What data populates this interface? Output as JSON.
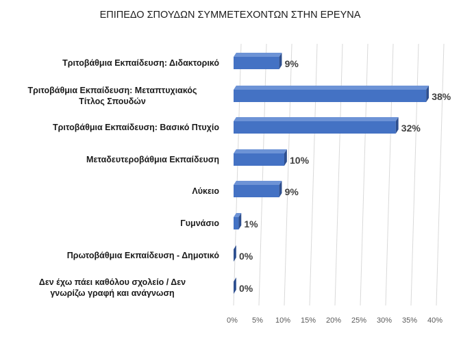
{
  "chart_data": {
    "type": "bar",
    "orientation": "horizontal",
    "title": "ΕΠΙΠΕΔΟ ΣΠΟΥΔΩΝ ΣΥΜΜΕΤΕΧΟΝΤΩΝ ΣΤΗΝ ΕΡΕΥΝΑ",
    "categories": [
      [
        "Τριτοβάθμια Εκπαίδευση: Διδακτορικό"
      ],
      [
        "Τριτοβάθμια Εκπαίδευση: Μεταπτυχιακός",
        "Τίτλος Σπουδών"
      ],
      [
        "Τριτοβάθμια Εκπαίδευση: Βασικό Πτυχίο"
      ],
      [
        "Μεταδευτεροβάθμια Εκπαίδευση"
      ],
      [
        "Λύκειο"
      ],
      [
        "Γυμνάσιο"
      ],
      [
        "Πρωτοβάθμια Εκπαίδευση - Δημοτικό"
      ],
      [
        "Δεν έχω πάει καθόλου σχολείο / Δεν",
        "γνωρίζω γραφή και ανάγνωση"
      ]
    ],
    "values": [
      9,
      38,
      32,
      10,
      9,
      1,
      0,
      0
    ],
    "data_labels": [
      "9%",
      "38%",
      "32%",
      "10%",
      "9%",
      "1%",
      "0%",
      "0%"
    ],
    "xticks": [
      "0%",
      "5%",
      "10%",
      "15%",
      "20%",
      "25%",
      "30%",
      "35%",
      "40%"
    ],
    "xlim": [
      0,
      40
    ],
    "grid": true,
    "legend": "none",
    "colors": {
      "bar_front": "#4472C4",
      "bar_top": "#6D93D6",
      "bar_side": "#2E4F8F",
      "grid": "#d9d9d9"
    }
  }
}
